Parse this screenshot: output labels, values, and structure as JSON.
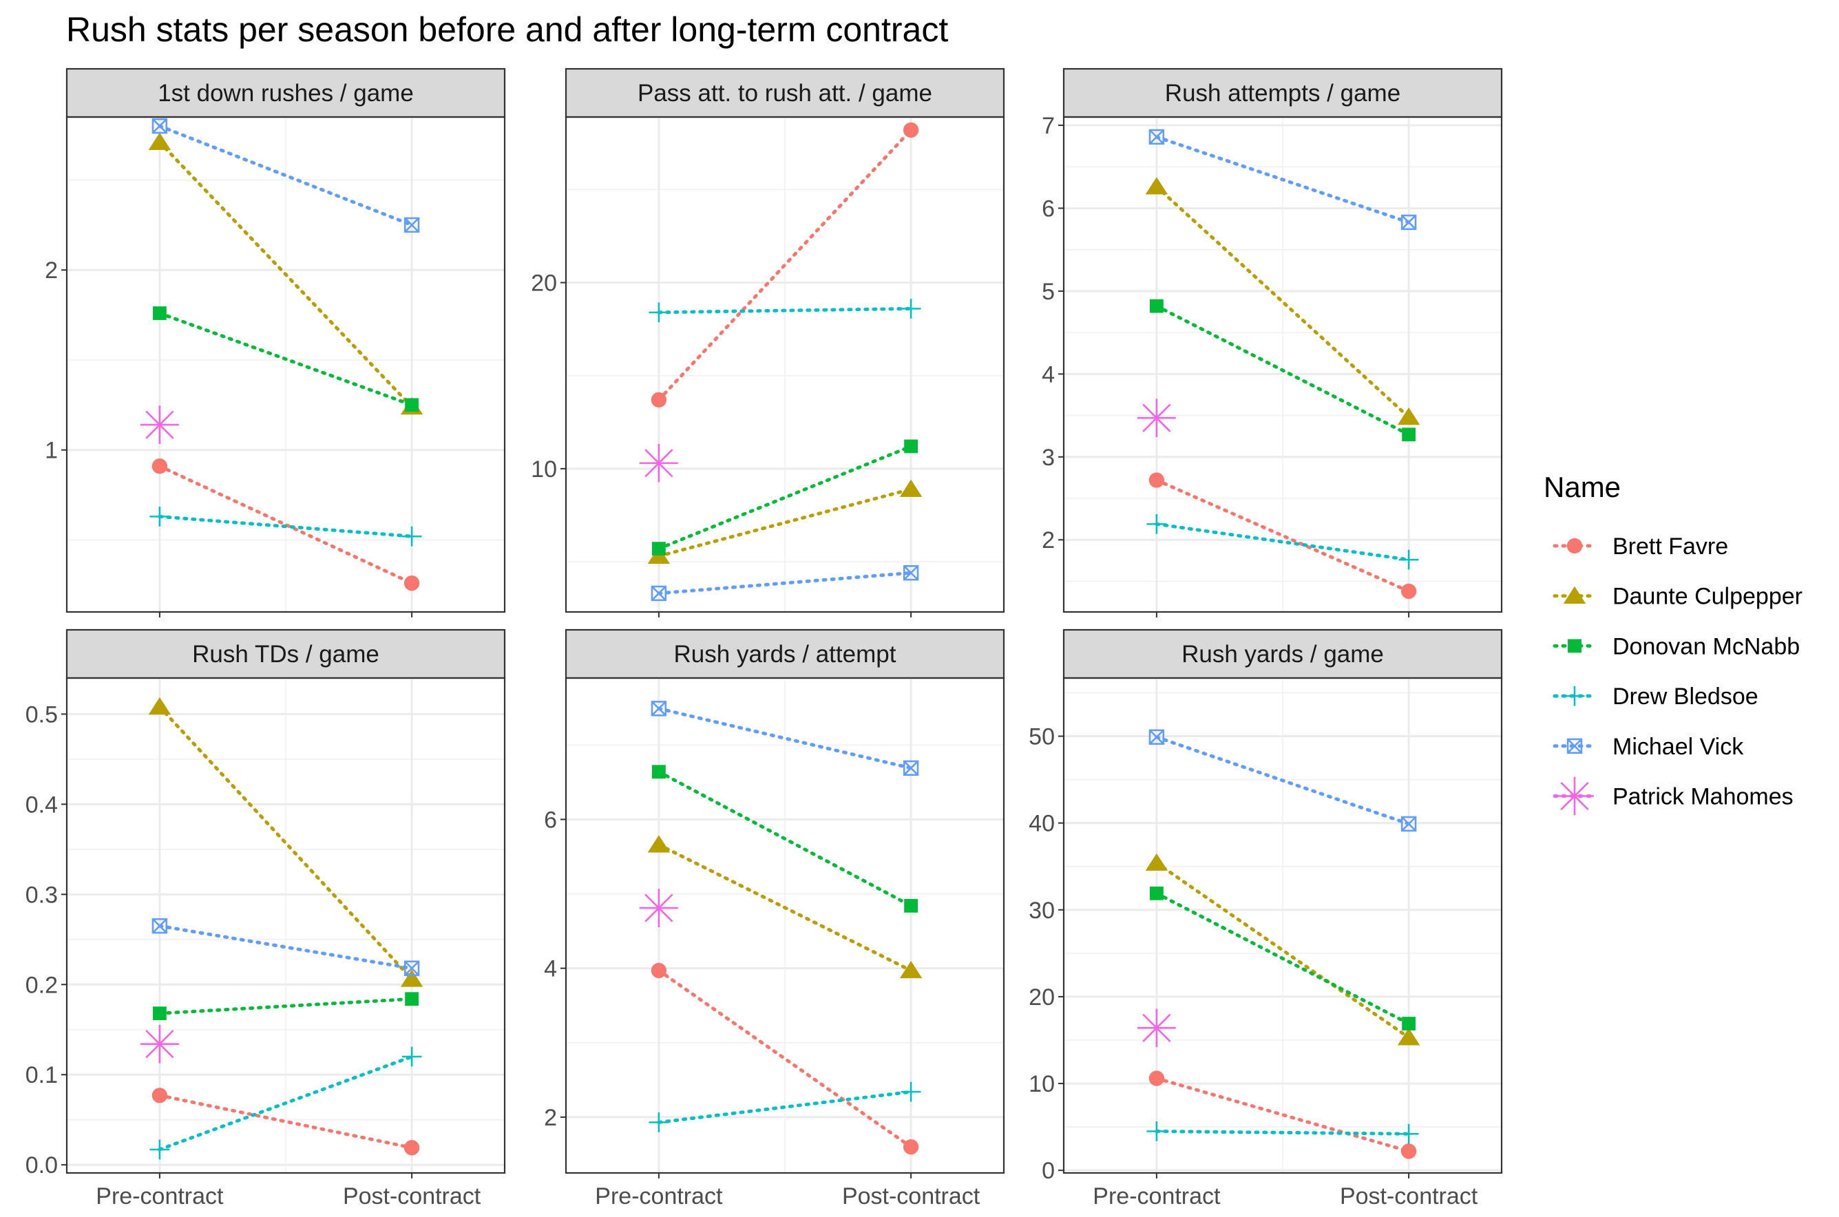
{
  "chart_data": {
    "type": "line",
    "title": "Rush stats per season before and after long-term contract",
    "x_categories": [
      "Pre-contract",
      "Post-contract"
    ],
    "legend": {
      "title": "Name",
      "placement": "right",
      "entries": [
        {
          "name": "Brett Favre",
          "color": "#F8766D",
          "shape": "circle"
        },
        {
          "name": "Daunte Culpepper",
          "color": "#B79F00",
          "shape": "triangle"
        },
        {
          "name": "Donovan McNabb",
          "color": "#00BA38",
          "shape": "square"
        },
        {
          "name": "Drew Bledsoe",
          "color": "#00BFC4",
          "shape": "plus"
        },
        {
          "name": "Michael Vick",
          "color": "#619CFF",
          "shape": "square-cross"
        },
        {
          "name": "Patrick Mahomes",
          "color": "#F564E3",
          "shape": "asterisk"
        }
      ]
    },
    "grid": true,
    "panels": [
      {
        "label": "1st down rushes / game",
        "ylim": [
          0.1,
          2.85
        ],
        "yticks": [
          1,
          2
        ],
        "series": [
          {
            "name": "Brett Favre",
            "values": [
              0.91,
              0.26
            ]
          },
          {
            "name": "Daunte Culpepper",
            "values": [
              2.71,
              1.24
            ]
          },
          {
            "name": "Donovan McNabb",
            "values": [
              1.76,
              1.25
            ]
          },
          {
            "name": "Drew Bledsoe",
            "values": [
              0.63,
              0.52
            ]
          },
          {
            "name": "Michael Vick",
            "values": [
              2.8,
              2.25
            ]
          },
          {
            "name": "Patrick Mahomes",
            "values": [
              1.14,
              null
            ]
          }
        ]
      },
      {
        "label": "Pass att. to rush att. / game",
        "ylim": [
          2.3,
          28.9
        ],
        "yticks": [
          10,
          20
        ],
        "series": [
          {
            "name": "Brett Favre",
            "values": [
              13.7,
              28.2
            ]
          },
          {
            "name": "Daunte Culpepper",
            "values": [
              5.3,
              8.9
            ]
          },
          {
            "name": "Donovan McNabb",
            "values": [
              5.7,
              11.2
            ]
          },
          {
            "name": "Drew Bledsoe",
            "values": [
              18.4,
              18.6
            ]
          },
          {
            "name": "Michael Vick",
            "values": [
              3.3,
              4.4
            ]
          },
          {
            "name": "Patrick Mahomes",
            "values": [
              10.3,
              null
            ]
          }
        ]
      },
      {
        "label": "Rush attempts / game",
        "ylim": [
          1.13,
          7.1
        ],
        "yticks": [
          2,
          3,
          4,
          5,
          6,
          7
        ],
        "series": [
          {
            "name": "Brett Favre",
            "values": [
              2.72,
              1.38
            ]
          },
          {
            "name": "Daunte Culpepper",
            "values": [
              6.26,
              3.48
            ]
          },
          {
            "name": "Donovan McNabb",
            "values": [
              4.82,
              3.27
            ]
          },
          {
            "name": "Drew Bledsoe",
            "values": [
              2.19,
              1.76
            ]
          },
          {
            "name": "Michael Vick",
            "values": [
              6.86,
              5.83
            ]
          },
          {
            "name": "Patrick Mahomes",
            "values": [
              3.47,
              null
            ]
          }
        ]
      },
      {
        "label": "Rush TDs / game",
        "ylim": [
          -0.009,
          0.54
        ],
        "yticks": [
          0.0,
          0.1,
          0.2,
          0.3,
          0.4,
          0.5
        ],
        "series": [
          {
            "name": "Brett Favre",
            "values": [
              0.077,
              0.019
            ]
          },
          {
            "name": "Daunte Culpepper",
            "values": [
              0.508,
              0.206
            ]
          },
          {
            "name": "Donovan McNabb",
            "values": [
              0.168,
              0.184
            ]
          },
          {
            "name": "Drew Bledsoe",
            "values": [
              0.017,
              0.12
            ]
          },
          {
            "name": "Michael Vick",
            "values": [
              0.265,
              0.218
            ]
          },
          {
            "name": "Patrick Mahomes",
            "values": [
              0.134,
              null
            ]
          }
        ]
      },
      {
        "label": "Rush yards / attempt",
        "ylim": [
          1.25,
          7.9
        ],
        "yticks": [
          2,
          4,
          6
        ],
        "series": [
          {
            "name": "Brett Favre",
            "values": [
              3.97,
              1.6
            ]
          },
          {
            "name": "Daunte Culpepper",
            "values": [
              5.66,
              3.97
            ]
          },
          {
            "name": "Donovan McNabb",
            "values": [
              6.64,
              4.84
            ]
          },
          {
            "name": "Drew Bledsoe",
            "values": [
              1.93,
              2.34
            ]
          },
          {
            "name": "Michael Vick",
            "values": [
              7.49,
              6.69
            ]
          },
          {
            "name": "Patrick Mahomes",
            "values": [
              4.81,
              null
            ]
          }
        ]
      },
      {
        "label": "Rush yards / game",
        "ylim": [
          -0.3,
          56.7
        ],
        "yticks": [
          0,
          10,
          20,
          30,
          40,
          50
        ],
        "series": [
          {
            "name": "Brett Favre",
            "values": [
              10.6,
              2.2
            ]
          },
          {
            "name": "Daunte Culpepper",
            "values": [
              35.4,
              15.3
            ]
          },
          {
            "name": "Donovan McNabb",
            "values": [
              31.9,
              16.9
            ]
          },
          {
            "name": "Drew Bledsoe",
            "values": [
              4.5,
              4.2
            ]
          },
          {
            "name": "Michael Vick",
            "values": [
              49.9,
              39.9
            ]
          },
          {
            "name": "Patrick Mahomes",
            "values": [
              16.4,
              null
            ]
          }
        ]
      }
    ]
  }
}
